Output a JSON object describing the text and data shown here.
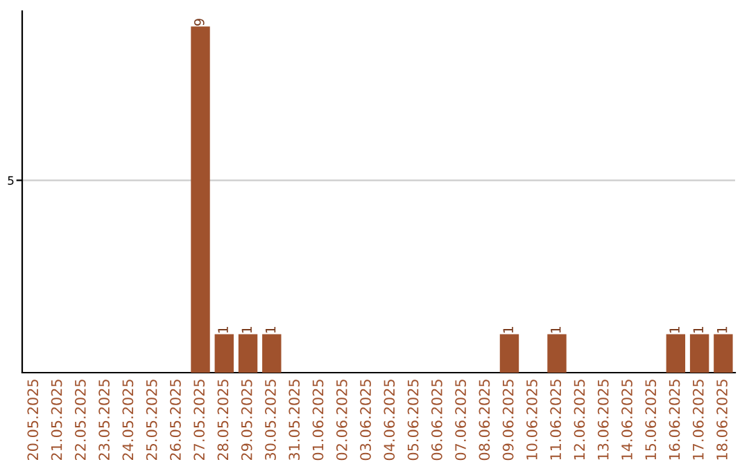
{
  "chart_data": {
    "type": "bar",
    "categories": [
      "20.05.2025",
      "21.05.2025",
      "22.05.2025",
      "23.05.2025",
      "24.05.2025",
      "25.05.2025",
      "26.05.2025",
      "27.05.2025",
      "28.05.2025",
      "29.05.2025",
      "30.05.2025",
      "31.05.2025",
      "01.06.2025",
      "02.06.2025",
      "03.06.2025",
      "04.06.2025",
      "05.06.2025",
      "06.06.2025",
      "07.06.2025",
      "08.06.2025",
      "09.06.2025",
      "10.06.2025",
      "11.06.2025",
      "12.06.2025",
      "13.06.2025",
      "14.06.2025",
      "15.06.2025",
      "16.06.2025",
      "17.06.2025",
      "18.06.2025"
    ],
    "values": [
      0,
      0,
      0,
      0,
      0,
      0,
      0,
      9,
      1,
      1,
      1,
      0,
      0,
      0,
      0,
      0,
      0,
      0,
      0,
      0,
      1,
      0,
      1,
      0,
      0,
      0,
      0,
      1,
      1,
      1
    ],
    "value_labels": [
      null,
      null,
      null,
      null,
      null,
      null,
      null,
      "9",
      "1",
      "1",
      "1",
      null,
      null,
      null,
      null,
      null,
      null,
      null,
      null,
      null,
      "1",
      null,
      "1",
      null,
      null,
      null,
      null,
      "1",
      "1",
      "1"
    ],
    "color": "#a0522d",
    "ylim": [
      0,
      9.4
    ],
    "yticks": [
      5
    ],
    "grid": "y"
  }
}
